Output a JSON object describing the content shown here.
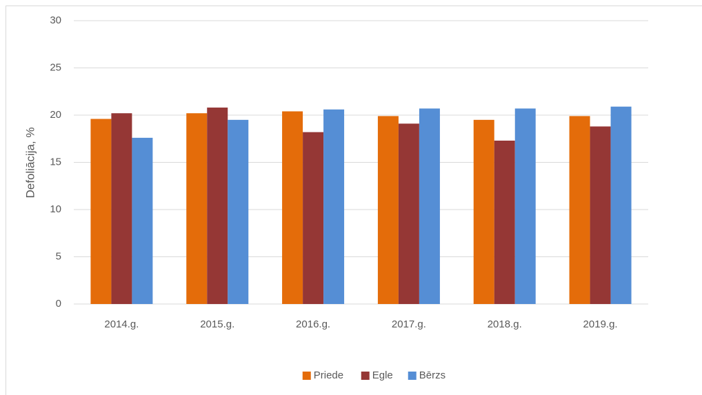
{
  "chart_data": {
    "type": "bar",
    "y_axis_label": "Defoliācija, %",
    "categories": [
      "2014.g.",
      "2015.g.",
      "2016.g.",
      "2017.g.",
      "2018.g.",
      "2019.g."
    ],
    "series": [
      {
        "name": "Priede",
        "color": "#e46c0a",
        "values": [
          19.6,
          20.2,
          20.4,
          19.9,
          19.5,
          19.9
        ]
      },
      {
        "name": "Egle",
        "color": "#953735",
        "values": [
          20.2,
          20.8,
          18.2,
          19.1,
          17.3,
          18.8
        ]
      },
      {
        "name": "Bērzs",
        "color": "#558ed5",
        "values": [
          17.6,
          19.5,
          20.6,
          20.7,
          20.7,
          20.9
        ]
      }
    ],
    "ylim": [
      0,
      30
    ],
    "yticks": [
      0,
      5,
      10,
      15,
      20,
      25,
      30
    ],
    "grid": true,
    "legend": "bottom"
  }
}
